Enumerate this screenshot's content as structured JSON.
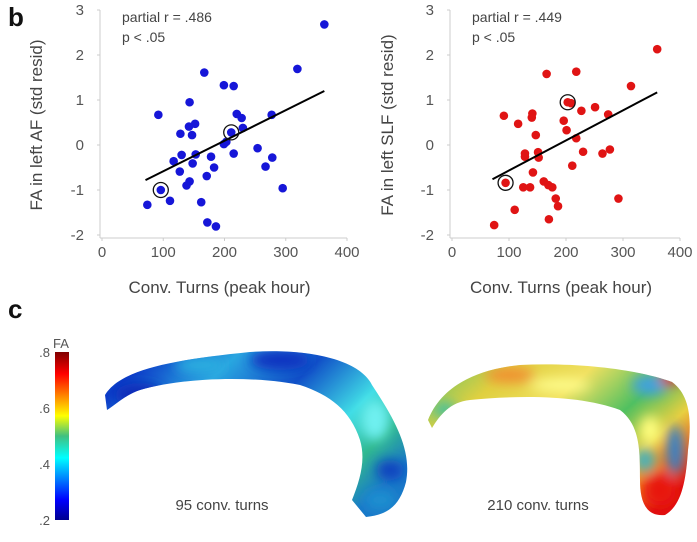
{
  "panel_b": {
    "label": "b"
  },
  "panel_c": {
    "label": "c",
    "colorbar": {
      "title": "FA",
      "ticks": [
        ".8",
        ".6",
        ".4",
        ".2"
      ],
      "range": [
        0.2,
        0.8
      ],
      "colormap": "jet"
    },
    "images": [
      {
        "caption": "95 conv. turns",
        "dominant_colors": [
          "#0a3ccf",
          "#1ea0e6",
          "#3fd9e0",
          "#2fbf8f"
        ]
      },
      {
        "caption": "210 conv. turns",
        "dominant_colors": [
          "#3fbf6a",
          "#e6e640",
          "#f08a20",
          "#e82010"
        ]
      }
    ]
  },
  "chart_data": [
    {
      "type": "scatter",
      "title": "",
      "xlabel": "Conv. Turns (peak hour)",
      "ylabel": "FA in left AF (std resid)",
      "xlim": [
        0,
        400
      ],
      "ylim": [
        -2,
        3
      ],
      "xticks": [
        "0",
        "100",
        "200",
        "300",
        "400"
      ],
      "yticks": [
        "-2",
        "-1",
        "0",
        "1",
        "2",
        "3"
      ],
      "grid": false,
      "annotation": [
        "partial r = .486",
        "p < .05"
      ],
      "color": "#1616d8",
      "points": [
        [
          363,
          2.68
        ],
        [
          319,
          1.69
        ],
        [
          167,
          1.61
        ],
        [
          199,
          1.33
        ],
        [
          215,
          1.31
        ],
        [
          143,
          0.95
        ],
        [
          92,
          0.67
        ],
        [
          220,
          0.69
        ],
        [
          228,
          0.6
        ],
        [
          277,
          0.67
        ],
        [
          152,
          0.47
        ],
        [
          142,
          0.41
        ],
        [
          230,
          0.38
        ],
        [
          128,
          0.25
        ],
        [
          147,
          0.22
        ],
        [
          211,
          0.28
        ],
        [
          203,
          0.07
        ],
        [
          199,
          0.02
        ],
        [
          254,
          -0.07
        ],
        [
          215,
          -0.19
        ],
        [
          130,
          -0.22
        ],
        [
          153,
          -0.21
        ],
        [
          178,
          -0.26
        ],
        [
          278,
          -0.28
        ],
        [
          117,
          -0.36
        ],
        [
          148,
          -0.41
        ],
        [
          183,
          -0.5
        ],
        [
          267,
          -0.48
        ],
        [
          127,
          -0.59
        ],
        [
          171,
          -0.69
        ],
        [
          143,
          -0.81
        ],
        [
          138,
          -0.9
        ],
        [
          96,
          -1.0
        ],
        [
          295,
          -0.96
        ],
        [
          111,
          -1.24
        ],
        [
          74,
          -1.33
        ],
        [
          162,
          -1.27
        ],
        [
          172,
          -1.72
        ],
        [
          186,
          -1.81
        ]
      ],
      "highlighted": [
        [
          96,
          -1.0
        ],
        [
          211,
          0.28
        ]
      ],
      "fit_line": [
        [
          71,
          -0.78
        ],
        [
          363,
          1.2
        ]
      ]
    },
    {
      "type": "scatter",
      "title": "",
      "xlabel": "Conv. Turns (peak hour)",
      "ylabel": "FA in left SLF (std resid)",
      "xlim": [
        0,
        400
      ],
      "ylim": [
        -2,
        3
      ],
      "xticks": [
        "0",
        "100",
        "200",
        "300",
        "400"
      ],
      "yticks": [
        "-2",
        "-1",
        "0",
        "1",
        "2",
        "3"
      ],
      "grid": false,
      "annotation": [
        "partial r = .449",
        "p < .05"
      ],
      "color": "#e01414",
      "points": [
        [
          360,
          2.13
        ],
        [
          218,
          1.63
        ],
        [
          166,
          1.58
        ],
        [
          314,
          1.31
        ],
        [
          203,
          0.95
        ],
        [
          209,
          0.93
        ],
        [
          227,
          0.76
        ],
        [
          251,
          0.84
        ],
        [
          274,
          0.68
        ],
        [
          91,
          0.65
        ],
        [
          141,
          0.7
        ],
        [
          140,
          0.61
        ],
        [
          116,
          0.47
        ],
        [
          196,
          0.54
        ],
        [
          201,
          0.33
        ],
        [
          147,
          0.22
        ],
        [
          218,
          0.15
        ],
        [
          128,
          -0.19
        ],
        [
          128,
          -0.26
        ],
        [
          151,
          -0.16
        ],
        [
          152,
          -0.28
        ],
        [
          230,
          -0.15
        ],
        [
          264,
          -0.19
        ],
        [
          277,
          -0.1
        ],
        [
          211,
          -0.46
        ],
        [
          142,
          -0.61
        ],
        [
          94,
          -0.84
        ],
        [
          161,
          -0.81
        ],
        [
          169,
          -0.89
        ],
        [
          176,
          -0.94
        ],
        [
          125,
          -0.94
        ],
        [
          137,
          -0.94
        ],
        [
          182,
          -1.19
        ],
        [
          186,
          -1.36
        ],
        [
          292,
          -1.19
        ],
        [
          110,
          -1.44
        ],
        [
          170,
          -1.65
        ],
        [
          74,
          -1.78
        ]
      ],
      "highlighted": [
        [
          94,
          -0.84
        ],
        [
          203,
          0.95
        ]
      ],
      "fit_line": [
        [
          71,
          -0.76
        ],
        [
          360,
          1.17
        ]
      ]
    }
  ]
}
